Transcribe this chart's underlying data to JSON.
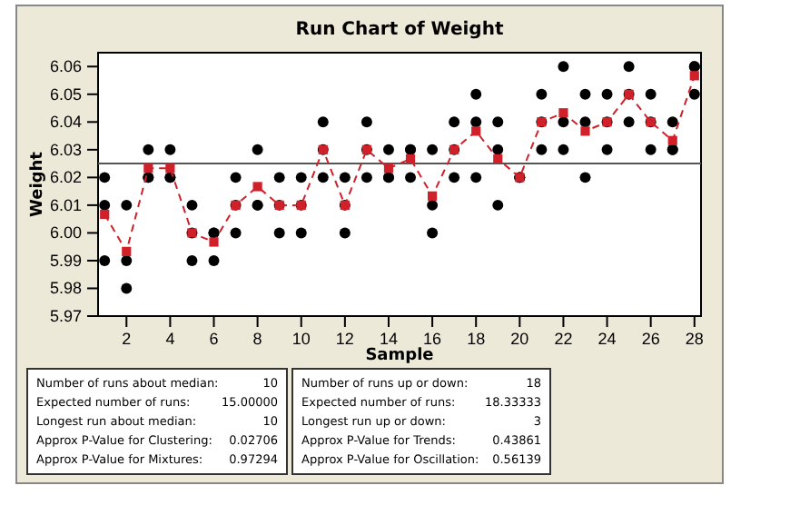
{
  "chart_data": {
    "type": "scatter",
    "title": "Run Chart of Weight",
    "xlabel": "Sample",
    "ylabel": "Weight",
    "xlim": [
      0.7,
      28.3
    ],
    "xticks": [
      2,
      4,
      6,
      8,
      10,
      12,
      14,
      16,
      18,
      20,
      22,
      24,
      26,
      28
    ],
    "ylim": [
      5.97,
      6.065
    ],
    "yticks": [
      {
        "value": 5.97,
        "label": "5.97"
      },
      {
        "value": 5.98,
        "label": "5.98"
      },
      {
        "value": 5.99,
        "label": "5.99"
      },
      {
        "value": 6.0,
        "label": "6.00"
      },
      {
        "value": 6.01,
        "label": "6.01"
      },
      {
        "value": 6.02,
        "label": "6.02"
      },
      {
        "value": 6.03,
        "label": "6.03"
      },
      {
        "value": 6.04,
        "label": "6.04"
      },
      {
        "value": 6.05,
        "label": "6.05"
      },
      {
        "value": 6.06,
        "label": "6.06"
      }
    ],
    "grid": false,
    "series": [
      {
        "marker": "circle",
        "color": "#000000",
        "x": [
          1,
          1,
          1,
          2,
          2,
          2,
          3,
          3,
          3,
          4,
          4,
          4,
          5,
          5,
          5,
          6,
          6,
          6,
          7,
          7,
          7,
          8,
          8,
          8,
          9,
          9,
          9,
          10,
          10,
          10,
          11,
          11,
          11,
          12,
          12,
          12,
          13,
          13,
          13,
          14,
          14,
          14,
          15,
          15,
          15,
          16,
          16,
          16,
          17,
          17,
          17,
          18,
          18,
          18,
          19,
          19,
          19,
          20,
          20,
          20,
          21,
          21,
          21,
          22,
          22,
          22,
          23,
          23,
          23,
          24,
          24,
          24,
          25,
          25,
          25,
          26,
          26,
          26,
          27,
          27,
          27,
          28,
          28,
          28
        ],
        "values": [
          6.02,
          6.01,
          5.99,
          6.01,
          5.99,
          5.98,
          6.03,
          6.02,
          6.02,
          6.03,
          6.02,
          6.02,
          6.01,
          6.0,
          5.99,
          6.0,
          6.0,
          5.99,
          6.02,
          6.01,
          6.0,
          6.03,
          6.01,
          6.01,
          6.02,
          6.01,
          6.0,
          6.02,
          6.01,
          6.0,
          6.04,
          6.03,
          6.02,
          6.02,
          6.01,
          6.0,
          6.04,
          6.03,
          6.02,
          6.03,
          6.02,
          6.02,
          6.03,
          6.03,
          6.02,
          6.03,
          6.01,
          6.0,
          6.04,
          6.03,
          6.02,
          6.05,
          6.04,
          6.02,
          6.04,
          6.03,
          6.01,
          6.02,
          6.02,
          6.02,
          6.05,
          6.04,
          6.03,
          6.06,
          6.04,
          6.03,
          6.05,
          6.04,
          6.02,
          6.05,
          6.04,
          6.03,
          6.06,
          6.05,
          6.04,
          6.05,
          6.04,
          6.03,
          6.04,
          6.03,
          6.03,
          6.06,
          6.06,
          6.05
        ]
      },
      {
        "type": "line",
        "marker": "square",
        "line_style": "dashed",
        "color": "#d0202a",
        "x": [
          1,
          2,
          3,
          4,
          5,
          6,
          7,
          8,
          9,
          10,
          11,
          12,
          13,
          14,
          15,
          16,
          17,
          18,
          19,
          20,
          21,
          22,
          23,
          24,
          25,
          26,
          27,
          28
        ],
        "values": [
          6.0067,
          5.9933,
          6.0233,
          6.0233,
          6.0,
          5.9967,
          6.01,
          6.0167,
          6.01,
          6.01,
          6.03,
          6.01,
          6.03,
          6.0233,
          6.0267,
          6.0133,
          6.03,
          6.0367,
          6.0267,
          6.02,
          6.04,
          6.0433,
          6.0367,
          6.04,
          6.05,
          6.04,
          6.0333,
          6.0567
        ]
      }
    ],
    "ref_lines": [
      {
        "axis": "y",
        "value": 6.025,
        "color": "#555555"
      }
    ],
    "annotations": [
      "Number of runs about median:",
      "10",
      "Expected number of runs:",
      "15.00000",
      "Longest run about median:",
      "10",
      "Approx P-Value for Clustering:",
      "0.02706",
      "Approx P-Value for Mixtures:",
      "0.97294",
      "Number of runs up or down:",
      "18",
      "Expected number of runs:",
      "18.33333",
      "Longest run up or down:",
      "3",
      "Approx P-Value for Trends:",
      "0.43861",
      "Approx P-Value for Oscillation:",
      "0.56139"
    ]
  }
}
